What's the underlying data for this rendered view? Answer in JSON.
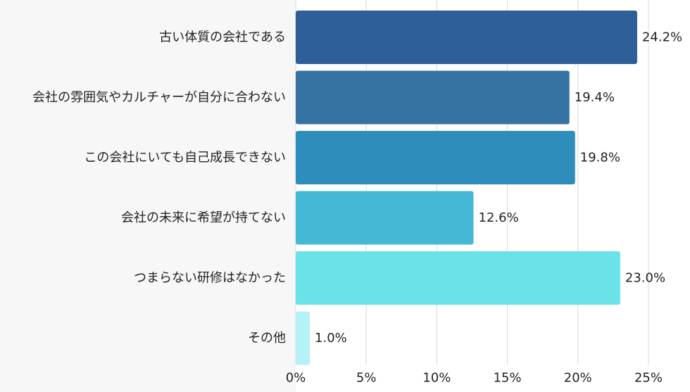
{
  "chart_data": {
    "type": "bar",
    "orientation": "horizontal",
    "categories": [
      "古い体質の会社である",
      "会社の雰囲気やカルチャーが自分に合わない",
      "この会社にいても自己成長できない",
      "会社の未来に希望が持てない",
      "つまらない研修はなかった",
      "その他"
    ],
    "values": [
      24.2,
      19.4,
      19.8,
      12.6,
      23.0,
      1.0
    ],
    "value_labels": [
      "24.2%",
      "19.4%",
      "19.8%",
      "12.6%",
      "23.0%",
      "1.0%"
    ],
    "colors": [
      "#2e5f99",
      "#3673a3",
      "#2e8dbb",
      "#44b8d6",
      "#6ae3e8",
      "#b5f2f7"
    ],
    "xlim": [
      0,
      25
    ],
    "xticks": [
      0,
      5,
      10,
      15,
      20,
      25
    ],
    "xtick_labels": [
      "0%",
      "5%",
      "10%",
      "15%",
      "20%",
      "25%"
    ],
    "grid": "vertical",
    "legend": "none"
  }
}
